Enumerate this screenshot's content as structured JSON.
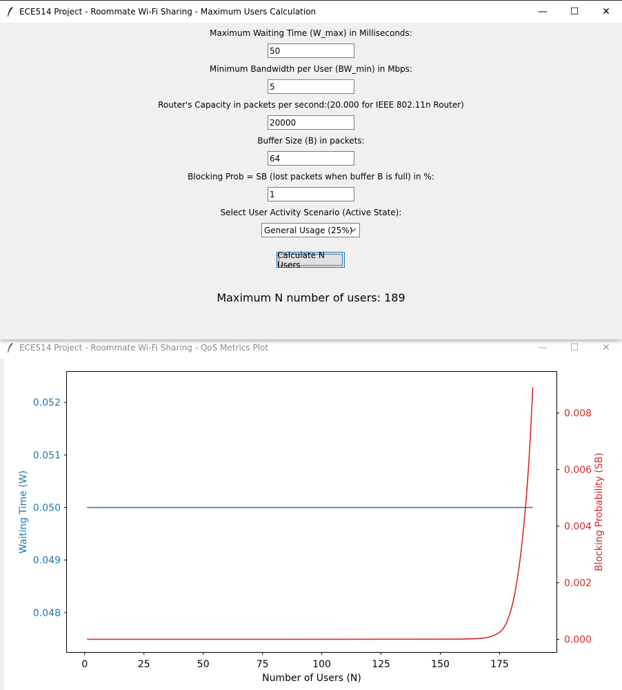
{
  "calc_window": {
    "title": "ECE514 Project - Roommate Wi-Fi Sharing - Maximum Users Calculation",
    "controls": {
      "minimize": "—",
      "maximize": "☐",
      "close": "✕"
    },
    "fields": [
      {
        "label": "Maximum Waiting Time (W_max) in Milliseconds:",
        "value": "50"
      },
      {
        "label": "Minimum Bandwidth per User (BW_min) in Mbps:",
        "value": "5"
      },
      {
        "label": "Router's Capacity in packets per second:(20.000 for IEEE 802.11n Router)",
        "value": "20000"
      },
      {
        "label": "Buffer Size (B) in packets:",
        "value": "64"
      },
      {
        "label": "Blocking Prob = SB (lost packets when buffer B is full) in %:",
        "value": "1"
      }
    ],
    "scenario_label": "Select User Activity Scenario (Active State):",
    "scenario_value": "General Usage (25%)",
    "calc_button": "Calculate N Users",
    "result": "Maximum N number of users: 189"
  },
  "plot_window": {
    "title": "ECE514 Project - Roommate Wi-Fi Sharing - QoS Metrics Plot",
    "controls": {
      "minimize": "—",
      "maximize": "☐",
      "close": "✕"
    }
  },
  "chart_data": {
    "type": "line",
    "xlabel": "Number of Users (N)",
    "ylabel_left": "Waiting Time (W)",
    "ylabel_right": "Blocking Probability (SB)",
    "x_ticks": [
      0,
      25,
      50,
      75,
      100,
      125,
      150,
      175
    ],
    "y_left_ticks": [
      "0.048",
      "0.049",
      "0.050",
      "0.051",
      "0.052"
    ],
    "y_right_ticks": [
      "0.000",
      "0.002",
      "0.004",
      "0.006",
      "0.008"
    ],
    "xlim": [
      -7.5,
      199
    ],
    "ylim_left": [
      0.04725,
      0.05258
    ],
    "ylim_right": [
      -0.00045,
      0.00945
    ],
    "series": [
      {
        "name": "Waiting Time (W)",
        "axis": "left",
        "color": "#1f77b4",
        "x": [
          1,
          189
        ],
        "y": [
          0.05,
          0.05
        ]
      },
      {
        "name": "Blocking Probability (SB)",
        "axis": "right",
        "color": "#d62728",
        "x": [
          1,
          150,
          160,
          165,
          170,
          173,
          176,
          178,
          180,
          182,
          184,
          186,
          187,
          188,
          189
        ],
        "y": [
          0.0,
          0.0,
          1e-05,
          2e-05,
          6e-05,
          0.00014,
          0.0003,
          0.00058,
          0.00106,
          0.00184,
          0.003,
          0.0047,
          0.0058,
          0.0072,
          0.0089
        ]
      }
    ],
    "colors": {
      "left_axis": "#1f77b4",
      "right_axis": "#d62728"
    }
  }
}
